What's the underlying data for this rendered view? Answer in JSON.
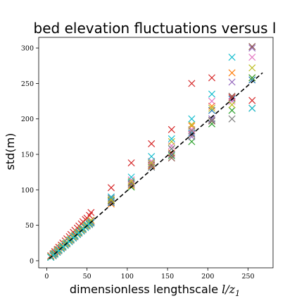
{
  "chart_data": {
    "type": "scatter",
    "title": "bed elevation fluctuations versus l",
    "xlabel": {
      "prefix": "dimensionless lengthscale ",
      "math": "l/z",
      "sub": "1"
    },
    "ylabel": "std(m)",
    "xlim": [
      -10,
      281
    ],
    "ylim": [
      -10,
      315
    ],
    "xticks": [
      0,
      50,
      100,
      150,
      200,
      250
    ],
    "yticks": [
      0,
      50,
      100,
      150,
      200,
      250,
      300
    ],
    "grid": false,
    "marker": "x",
    "colors": [
      "#1f77b4",
      "#ff7f0e",
      "#2ca02c",
      "#d62728",
      "#9467bd",
      "#8c564b",
      "#e377c2",
      "#7f7f7f",
      "#bcbd22",
      "#17becf"
    ],
    "reference_line": {
      "style": "dashed",
      "color": "#000000",
      "x": [
        3,
        268
      ],
      "y": [
        3,
        265
      ]
    },
    "x": [
      5,
      8,
      10,
      13,
      15,
      18,
      20,
      23,
      25,
      28,
      30,
      33,
      35,
      38,
      40,
      43,
      45,
      48,
      50,
      53,
      55,
      80,
      105,
      130,
      155,
      180,
      205,
      230,
      255
    ],
    "series": [
      {
        "values": [
          5,
          8,
          10,
          13,
          15,
          18,
          20,
          23,
          25,
          28,
          30,
          33,
          35,
          38,
          40,
          43,
          45,
          48,
          50,
          52,
          55,
          82,
          108,
          132,
          158,
          180,
          212,
          228,
          255
        ]
      },
      {
        "values": [
          6,
          9,
          11,
          14,
          16,
          19,
          21,
          24,
          26,
          29,
          31,
          34,
          36,
          39,
          41,
          44,
          46,
          49,
          51,
          54,
          57,
          80,
          106,
          134,
          152,
          190,
          218,
          265,
          258
        ]
      },
      {
        "values": [
          5,
          7,
          10,
          12,
          15,
          17,
          19,
          22,
          24,
          27,
          29,
          32,
          34,
          37,
          39,
          42,
          44,
          47,
          49,
          51,
          54,
          85,
          104,
          140,
          148,
          168,
          193,
          212,
          258
        ]
      },
      {
        "values": [
          7,
          10,
          13,
          16,
          19,
          22,
          25,
          28,
          31,
          34,
          37,
          40,
          43,
          46,
          49,
          52,
          55,
          58,
          60,
          64,
          68,
          103,
          138,
          165,
          185,
          250,
          258,
          230,
          226
        ]
      },
      {
        "values": [
          6,
          9,
          11,
          14,
          16,
          19,
          21,
          24,
          26,
          29,
          31,
          34,
          36,
          39,
          41,
          44,
          46,
          49,
          51,
          53,
          56,
          88,
          110,
          137,
          150,
          175,
          200,
          252,
          300
        ]
      },
      {
        "values": [
          5,
          8,
          10,
          13,
          15,
          18,
          20,
          23,
          25,
          28,
          30,
          33,
          35,
          38,
          40,
          43,
          45,
          48,
          50,
          53,
          55,
          84,
          110,
          135,
          145,
          178,
          197,
          232,
          302
        ]
      },
      {
        "values": [
          6,
          8,
          11,
          13,
          16,
          18,
          21,
          23,
          26,
          28,
          31,
          33,
          36,
          38,
          41,
          43,
          46,
          48,
          51,
          53,
          56,
          90,
          114,
          140,
          162,
          185,
          225,
          225,
          287
        ]
      },
      {
        "values": [
          5,
          7,
          9,
          12,
          14,
          17,
          19,
          22,
          24,
          27,
          29,
          32,
          34,
          37,
          39,
          42,
          44,
          47,
          49,
          51,
          53,
          88,
          108,
          132,
          158,
          183,
          198,
          200,
          215
        ]
      },
      {
        "values": [
          6,
          9,
          11,
          14,
          16,
          19,
          21,
          24,
          26,
          29,
          31,
          34,
          36,
          39,
          41,
          44,
          46,
          49,
          51,
          54,
          57,
          86,
          112,
          138,
          168,
          192,
          215,
          220,
          272
        ]
      },
      {
        "values": [
          5,
          8,
          10,
          12,
          15,
          17,
          20,
          22,
          25,
          27,
          30,
          32,
          35,
          37,
          40,
          42,
          45,
          47,
          50,
          52,
          54,
          90,
          118,
          147,
          172,
          200,
          235,
          287,
          215
        ]
      }
    ]
  }
}
